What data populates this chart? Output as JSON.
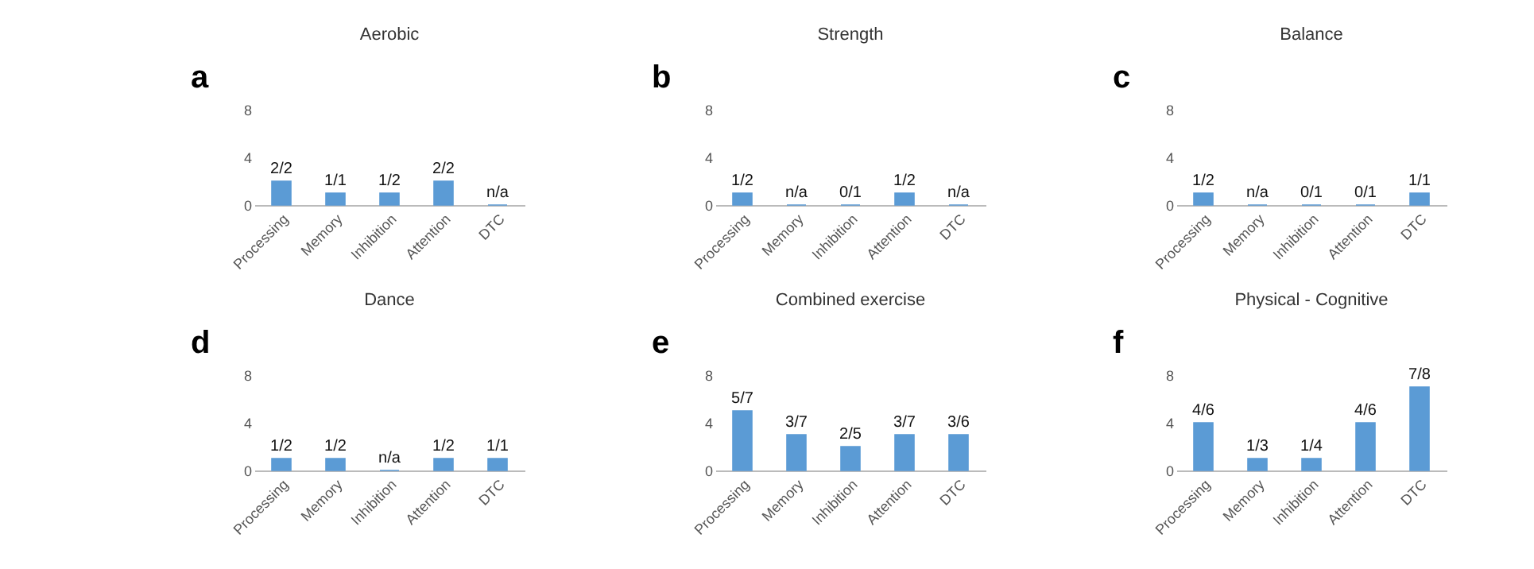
{
  "chart_data": [
    {
      "type": "bar",
      "title": "Aerobic",
      "categories": [
        "Processing",
        "Memory",
        "Inhibition",
        "Attention",
        "DTC"
      ],
      "values": [
        2,
        1,
        1,
        2,
        0
      ],
      "color": "#5b9bd5",
      "ylim": [
        0,
        8
      ],
      "yticks": [
        0,
        4,
        8
      ],
      "annotations": [
        "a",
        {
          "text": "2/2",
          "x": "Processing",
          "y": 2
        },
        {
          "text": "1/1",
          "x": "Memory",
          "y": 1
        },
        {
          "text": "1/2",
          "x": "Inhibition",
          "y": 1
        },
        {
          "text": "2/2",
          "x": "Attention",
          "y": 2
        },
        {
          "text": "n/a",
          "x": "DTC",
          "y": 0
        }
      ]
    },
    {
      "type": "bar",
      "title": "Strength",
      "categories": [
        "Processing",
        "Memory",
        "Inhibition",
        "Attention",
        "DTC"
      ],
      "values": [
        1,
        0,
        0,
        1,
        0
      ],
      "color": "#5b9bd5",
      "ylim": [
        0,
        8
      ],
      "yticks": [
        0,
        4,
        8
      ],
      "annotations": [
        "b",
        {
          "text": "1/2",
          "x": "Processing",
          "y": 1
        },
        {
          "text": "n/a",
          "x": "Memory",
          "y": 0
        },
        {
          "text": "0/1",
          "x": "Inhibition",
          "y": 0
        },
        {
          "text": "1/2",
          "x": "Attention",
          "y": 1
        },
        {
          "text": "n/a",
          "x": "DTC",
          "y": 0
        }
      ]
    },
    {
      "type": "bar",
      "title": "Balance",
      "categories": [
        "Processing",
        "Memory",
        "Inhibition",
        "Attention",
        "DTC"
      ],
      "values": [
        1,
        0,
        0,
        0,
        1
      ],
      "color": "#5b9bd5",
      "ylim": [
        0,
        8
      ],
      "yticks": [
        0,
        4,
        8
      ],
      "annotations": [
        "c",
        {
          "text": "1/2",
          "x": "Processing",
          "y": 1
        },
        {
          "text": "n/a",
          "x": "Memory",
          "y": 0
        },
        {
          "text": "0/1",
          "x": "Inhibition",
          "y": 0
        },
        {
          "text": "0/1",
          "x": "Attention",
          "y": 0
        },
        {
          "text": "1/1",
          "x": "DTC",
          "y": 1
        }
      ]
    },
    {
      "type": "bar",
      "title": "Dance",
      "categories": [
        "Processing",
        "Memory",
        "Inhibition",
        "Attention",
        "DTC"
      ],
      "values": [
        1,
        1,
        0,
        1,
        1
      ],
      "color": "#5b9bd5",
      "ylim": [
        0,
        8
      ],
      "yticks": [
        0,
        4,
        8
      ],
      "annotations": [
        "d",
        {
          "text": "1/2",
          "x": "Processing",
          "y": 1
        },
        {
          "text": "1/2",
          "x": "Memory",
          "y": 1
        },
        {
          "text": "n/a",
          "x": "Inhibition",
          "y": 0
        },
        {
          "text": "1/2",
          "x": "Attention",
          "y": 1
        },
        {
          "text": "1/1",
          "x": "DTC",
          "y": 1
        }
      ]
    },
    {
      "type": "bar",
      "title": "Combined exercise",
      "categories": [
        "Processing",
        "Memory",
        "Inhibition",
        "Attention",
        "DTC"
      ],
      "values": [
        5,
        3,
        2,
        3,
        3
      ],
      "color": "#5b9bd5",
      "ylim": [
        0,
        8
      ],
      "yticks": [
        0,
        4,
        8
      ],
      "annotations": [
        "e",
        {
          "text": "5/7",
          "x": "Processing",
          "y": 5
        },
        {
          "text": "3/7",
          "x": "Memory",
          "y": 3
        },
        {
          "text": "2/5",
          "x": "Inhibition",
          "y": 2
        },
        {
          "text": "3/7",
          "x": "Attention",
          "y": 3
        },
        {
          "text": "3/6",
          "x": "DTC",
          "y": 3
        }
      ]
    },
    {
      "type": "bar",
      "title": "Physical - Cognitive",
      "categories": [
        "Processing",
        "Memory",
        "Inhibition",
        "Attention",
        "DTC"
      ],
      "values": [
        4,
        1,
        1,
        4,
        7
      ],
      "color": "#5b9bd5",
      "ylim": [
        0,
        8
      ],
      "yticks": [
        0,
        4,
        8
      ],
      "annotations": [
        "f",
        {
          "text": "4/6",
          "x": "Processing",
          "y": 4
        },
        {
          "text": "1/3",
          "x": "Memory",
          "y": 1
        },
        {
          "text": "1/4",
          "x": "Inhibition",
          "y": 1
        },
        {
          "text": "4/6",
          "x": "Attention",
          "y": 4
        },
        {
          "text": "7/8",
          "x": "DTC",
          "y": 7
        }
      ]
    }
  ]
}
